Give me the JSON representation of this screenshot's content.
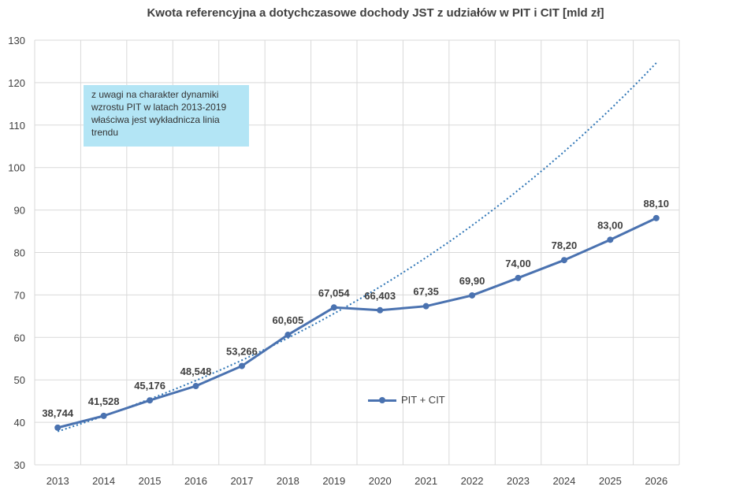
{
  "chart_data": {
    "type": "line",
    "title": "Kwota referencyjna a dotychczasowe dochody JST z udziałów w PIT i CIT [mld zł]",
    "categories": [
      "2013",
      "2014",
      "2015",
      "2016",
      "2017",
      "2018",
      "2019",
      "2020",
      "2021",
      "2022",
      "2023",
      "2024",
      "2025",
      "2026"
    ],
    "series": [
      {
        "name": "PIT + CIT",
        "values": [
          38.744,
          41.528,
          45.176,
          48.548,
          53.266,
          60.605,
          67.054,
          66.403,
          67.35,
          69.9,
          74.0,
          78.2,
          83.0,
          88.1
        ],
        "labels": [
          "38,744",
          "41,528",
          "45,176",
          "48,548",
          "53,266",
          "60,605",
          "67,054",
          "66,403",
          "67,35",
          "69,90",
          "74,00",
          "78,20",
          "83,00",
          "88,10"
        ],
        "color": "#4a72b0"
      }
    ],
    "trendline": {
      "type": "exponential",
      "style": "dotted",
      "color": "#2e75b6",
      "fit_years": "2013-2019",
      "extends_to": "2026"
    },
    "ylim": [
      30,
      130
    ],
    "yticks": [
      30,
      40,
      50,
      60,
      70,
      80,
      90,
      100,
      110,
      120,
      130
    ],
    "grid": true,
    "legend": "bottom-center",
    "annotation": "z uwagi na charakter dynamiki wzrostu PIT w latach 2013-2019 właściwa jest wykładnicza linia trendu",
    "xlabel": "",
    "ylabel": ""
  }
}
